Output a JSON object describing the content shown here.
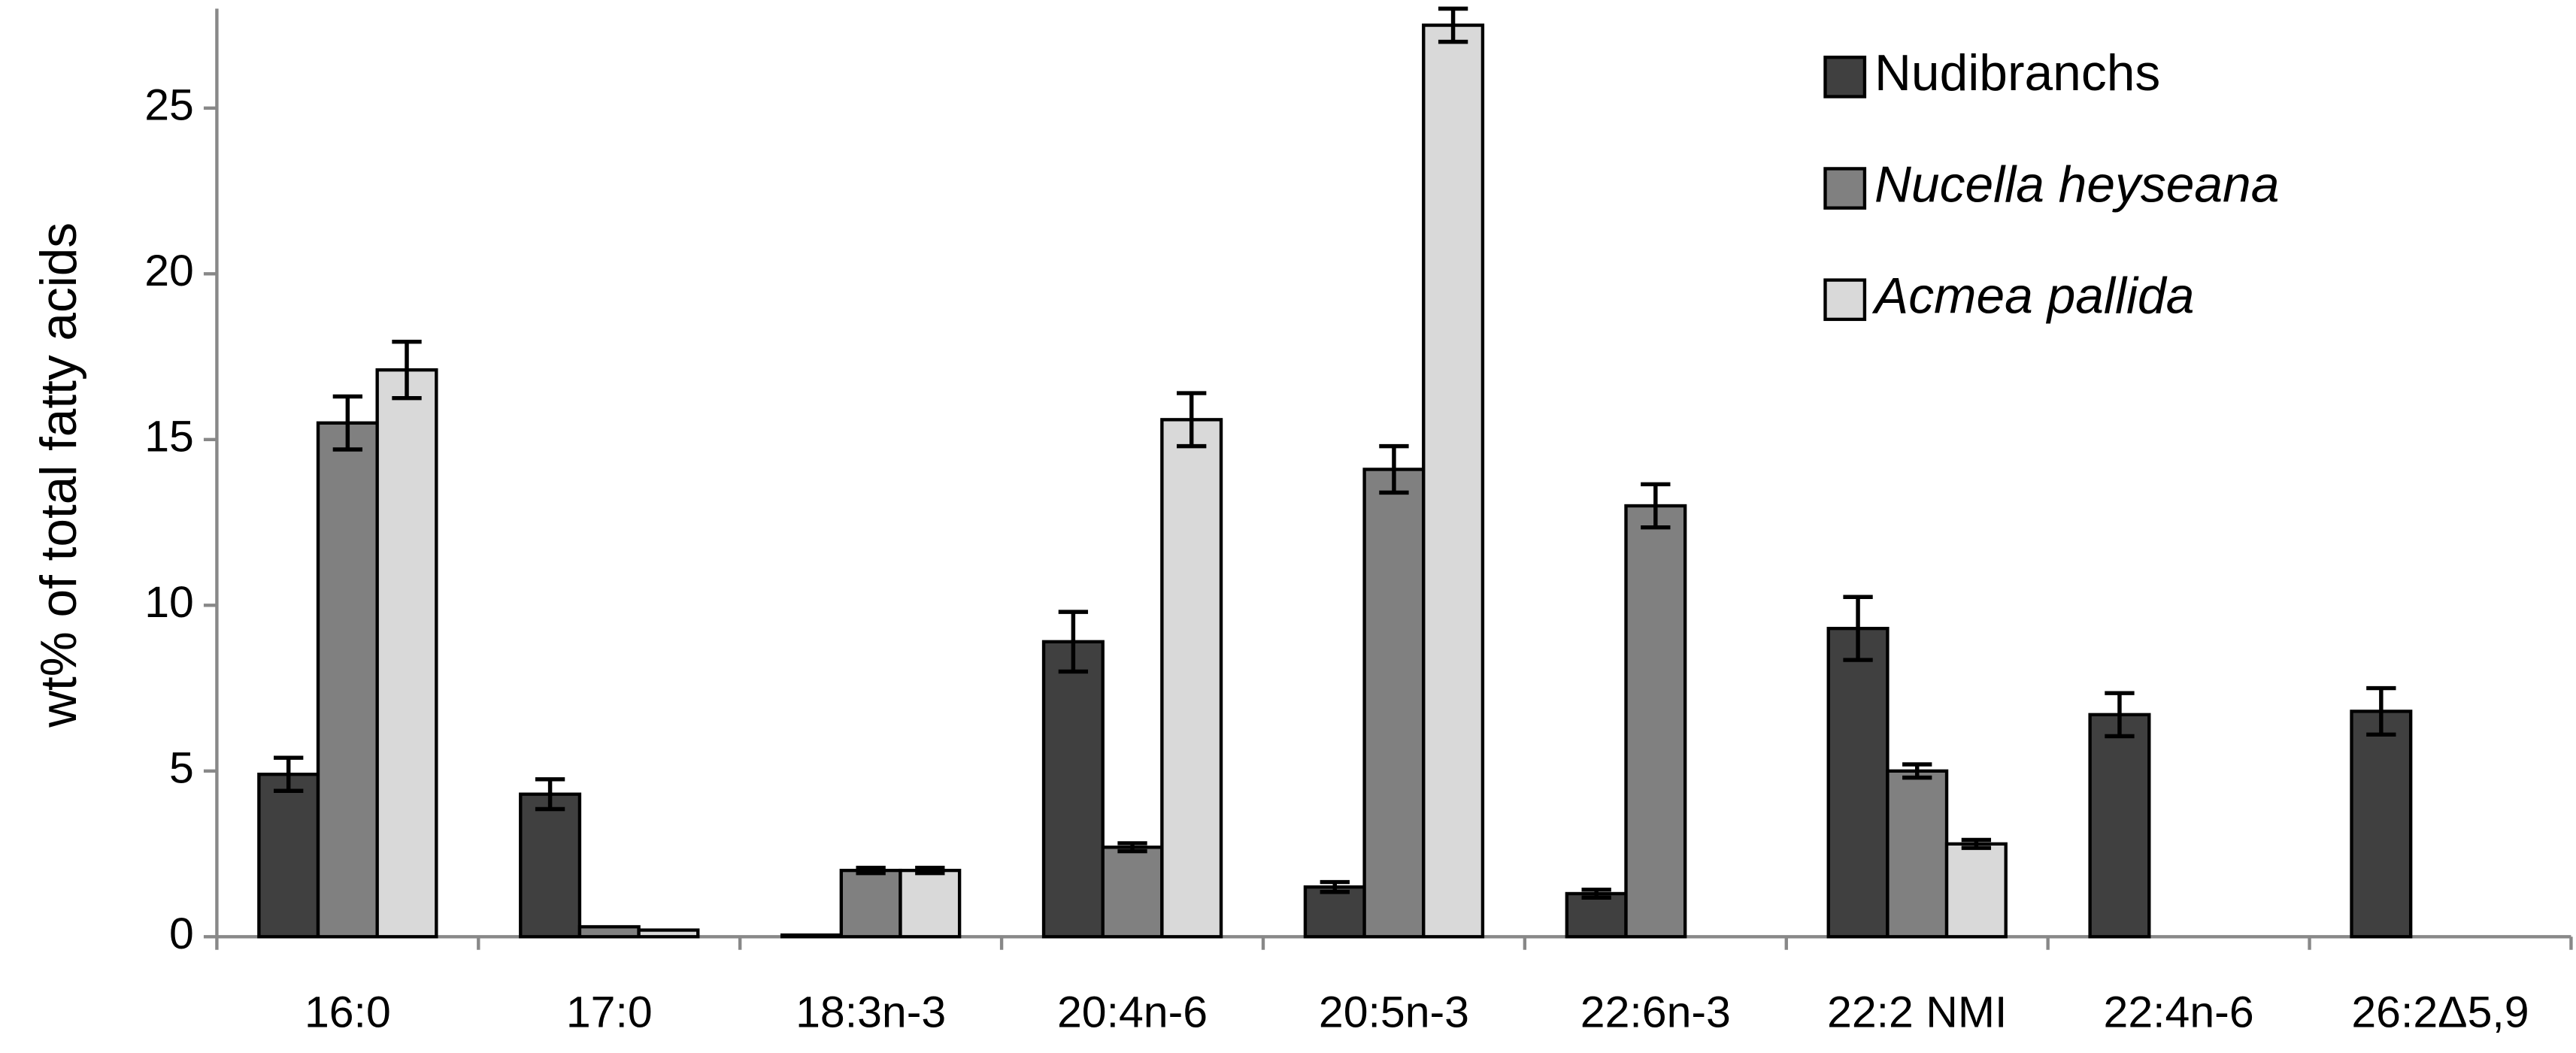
{
  "chart_data": {
    "type": "bar",
    "y_label": "wt% of total fatty acids",
    "categories": [
      "16:0",
      "17:0",
      "18:3n-3",
      "20:4n-6",
      "20:5n-3",
      "22:6n-3",
      "22:2 NMI",
      "22:4n-6",
      "26:2Δ5,9"
    ],
    "series": [
      {
        "name": "Nudibranchs",
        "color": "#404040",
        "italic": false,
        "values": [
          4.9,
          4.3,
          0.05,
          8.9,
          1.5,
          1.3,
          9.3,
          6.7,
          6.8
        ],
        "errors": [
          0.5,
          0.45,
          null,
          0.9,
          0.15,
          0.12,
          0.95,
          0.65,
          0.7
        ]
      },
      {
        "name": "Nucella heyseana",
        "color": "#808080",
        "italic": true,
        "values": [
          15.5,
          0.3,
          2.0,
          2.7,
          14.1,
          13.0,
          5.0,
          null,
          null
        ],
        "errors": [
          0.8,
          null,
          0.08,
          0.12,
          0.7,
          0.65,
          0.2,
          null,
          null
        ]
      },
      {
        "name": "Acmea pallida",
        "color": "#d9d9d9",
        "italic": true,
        "values": [
          17.1,
          0.2,
          2.0,
          15.6,
          27.5,
          null,
          2.8,
          null,
          null
        ],
        "errors": [
          0.85,
          null,
          0.08,
          0.8,
          0.5,
          null,
          0.12,
          null,
          null
        ]
      }
    ],
    "ylim": [
      0,
      28
    ],
    "yticks": [
      0,
      5,
      10,
      15,
      20,
      25
    ]
  }
}
